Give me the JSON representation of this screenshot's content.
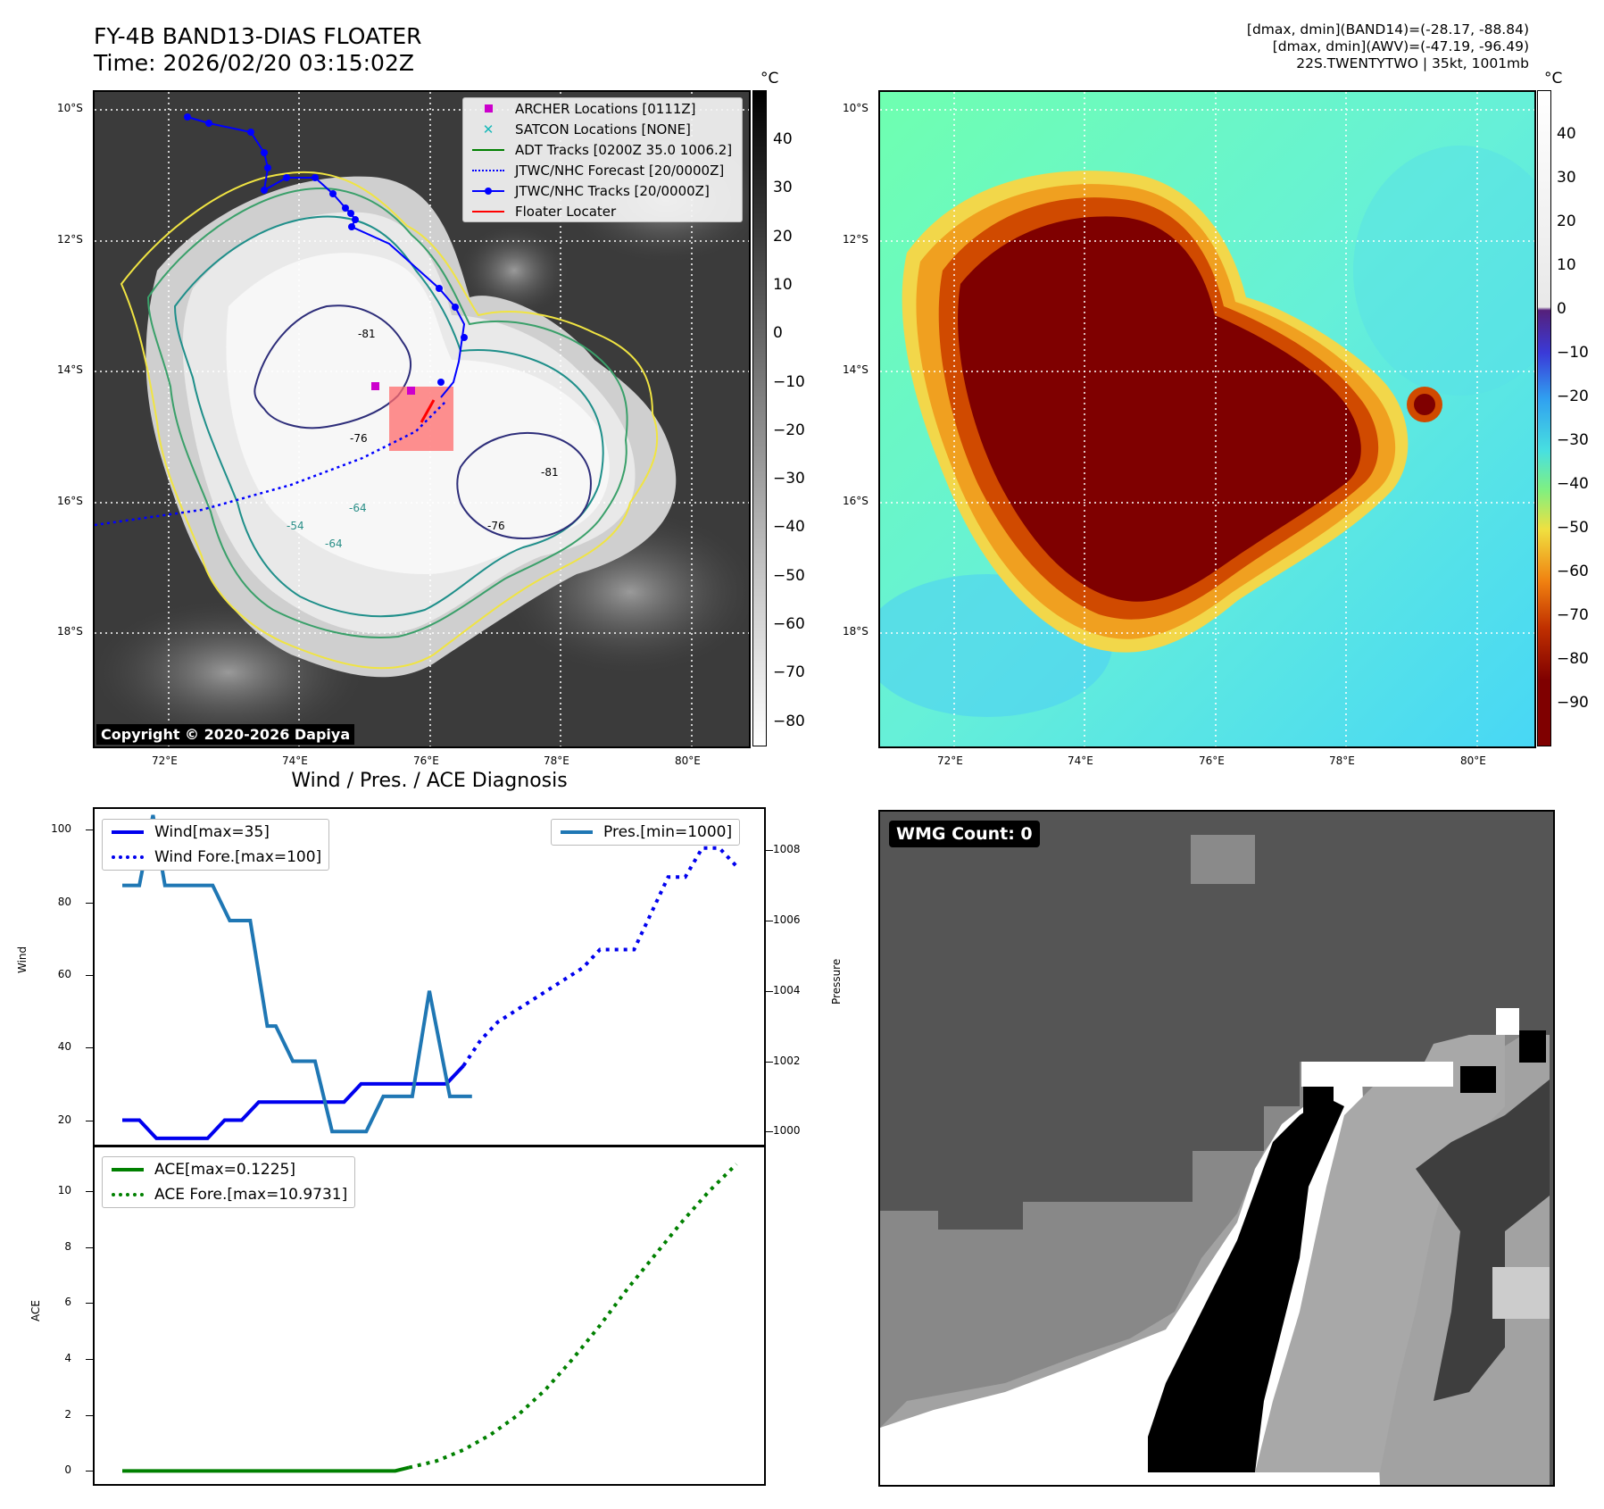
{
  "header": {
    "title_line1": "FY-4B BAND13-DIAS FLOATER",
    "title_line2": "Time: 2026/02/20 03:15:02Z",
    "right_line1": "[dmax, dmin](BAND14)=(-28.17, -88.84)",
    "right_line2": "[dmax, dmin](AWV)=(-47.19, -96.49)",
    "right_line3": "22S.TWENTYTWO | 35kt, 1001mb"
  },
  "map_axes": {
    "lat_labels": [
      "10°S",
      "12°S",
      "14°S",
      "16°S",
      "18°S"
    ],
    "lon_labels": [
      "72°E",
      "74°E",
      "76°E",
      "78°E",
      "80°E"
    ]
  },
  "ir_panel": {
    "legend": [
      {
        "label": "ARCHER Locations [0111Z]",
        "icon": "square-marker-icon",
        "color": "#cc00cc"
      },
      {
        "label": "SATCON Locations [NONE]",
        "icon": "x-marker-icon",
        "color": "#17b8b8"
      },
      {
        "label": "ADT Tracks [0200Z 35.0 1006.2]",
        "icon": "solid-line-icon",
        "color": "#007f00"
      },
      {
        "label": "JTWC/NHC Forecast [20/0000Z]",
        "icon": "dotted-line-icon",
        "color": "#0000ff"
      },
      {
        "label": "JTWC/NHC Tracks [20/0000Z]",
        "icon": "line-dot-icon",
        "color": "#0000ff"
      },
      {
        "label": "Floater Locater",
        "icon": "solid-line-icon",
        "color": "#ff0000"
      }
    ],
    "contour_labels": [
      "-81",
      "-76",
      "-64",
      "-54",
      "-64",
      "-81",
      "-76"
    ],
    "copyright": "Copyright © 2020-2026 Dapiya",
    "colorbar_unit": "°C",
    "colorbar_ticks": [
      "40",
      "30",
      "20",
      "10",
      "0",
      "−10",
      "−20",
      "−30",
      "−40",
      "−50",
      "−60",
      "−70",
      "−80"
    ]
  },
  "awv_panel": {
    "colorbar_unit": "°C",
    "colorbar_ticks": [
      "40",
      "30",
      "20",
      "10",
      "0",
      "−10",
      "−20",
      "−30",
      "−40",
      "−50",
      "−60",
      "−70",
      "−80",
      "−90"
    ]
  },
  "wmg_panel": {
    "label": "WMG Count: 0"
  },
  "chart_data": [
    {
      "type": "line",
      "title": "Wind / Pres. / ACE Diagnosis",
      "ylabel": "Wind",
      "ylabel_right": "Pressure",
      "ylim": [
        13,
        106
      ],
      "ylim_right": [
        999.6,
        1009.2
      ],
      "yticks": [
        20,
        40,
        60,
        80,
        100
      ],
      "yticks_right": [
        1000,
        1002,
        1004,
        1006,
        1008
      ],
      "legend_left": [
        "Wind[max=35]",
        "Wind Fore.[max=100]"
      ],
      "legend_right": [
        "Pres.[min=1000]"
      ],
      "series": [
        {
          "name": "Wind[max=35]",
          "style": "solid",
          "color": "#0000ee",
          "axis": "left",
          "x": [
            0,
            1,
            2,
            3,
            4,
            5,
            6,
            7,
            8,
            9,
            10,
            11,
            12,
            13,
            14,
            15,
            16,
            17,
            18,
            19,
            20
          ],
          "values": [
            20,
            20,
            15,
            15,
            15,
            15,
            20,
            20,
            25,
            25,
            25,
            25,
            25,
            25,
            30,
            30,
            30,
            30,
            30,
            30,
            35
          ]
        },
        {
          "name": "Wind Fore.[max=100]",
          "style": "dotted",
          "color": "#0000ee",
          "axis": "left",
          "x": [
            20,
            21,
            22,
            23,
            24,
            25,
            26,
            27,
            28,
            29,
            30,
            31,
            32,
            33,
            34,
            35,
            36
          ],
          "values": [
            35,
            42,
            47,
            50,
            53,
            56,
            59,
            62,
            67,
            67,
            67,
            77,
            87,
            87,
            95,
            95,
            90
          ]
        },
        {
          "name": "Pres.[min=1000]",
          "style": "solid",
          "color": "#1f77b4",
          "axis": "right",
          "x": [
            0,
            1,
            1.8,
            2.5,
            3.3,
            4.3,
            5.3,
            6.3,
            7.5,
            8.5,
            9,
            10,
            11.3,
            12.3,
            13.5,
            14.3,
            15.3,
            17,
            18,
            19.2,
            20.5
          ],
          "values": [
            1007,
            1007,
            1009,
            1007,
            1007,
            1007,
            1007,
            1006,
            1006,
            1003,
            1003,
            1002,
            1002,
            1000,
            1000,
            1000,
            1001,
            1001,
            1004,
            1001,
            1001
          ]
        }
      ]
    },
    {
      "type": "line",
      "ylabel": "ACE",
      "ylim": [
        -0.5,
        11.6
      ],
      "yticks": [
        0,
        2,
        4,
        6,
        8,
        10
      ],
      "legend": [
        "ACE[max=0.1225]",
        "ACE Fore.[max=10.9731]"
      ],
      "series": [
        {
          "name": "ACE[max=0.1225]",
          "style": "solid",
          "color": "#008000",
          "x": [
            0,
            20,
            21
          ],
          "values": [
            0,
            0,
            0.12
          ]
        },
        {
          "name": "ACE Fore.[max=10.9731]",
          "style": "dotted",
          "color": "#008000",
          "x": [
            21,
            23,
            25,
            27,
            29,
            31,
            33,
            35,
            37,
            39,
            41,
            43,
            45
          ],
          "values": [
            0.12,
            0.35,
            0.75,
            1.3,
            2.0,
            2.9,
            4.0,
            5.2,
            6.5,
            7.7,
            8.9,
            10.0,
            10.97
          ]
        }
      ]
    }
  ]
}
